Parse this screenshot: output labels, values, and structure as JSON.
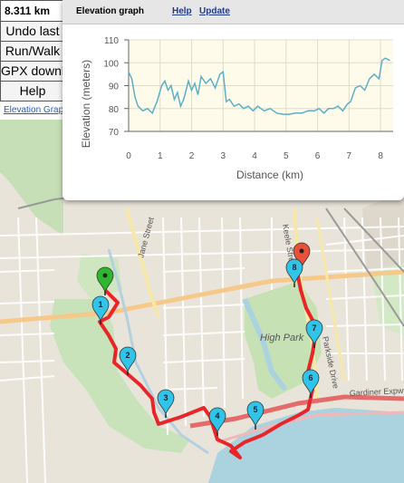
{
  "panel": {
    "distance": "8.311 km",
    "undo_label": "Undo last",
    "runwalk_label": "Run/Walk",
    "gpx_label": "GPX download",
    "help_label": "Help",
    "elevation_link": "Elevation Graph"
  },
  "popup": {
    "title": "Elevation graph",
    "help_link": "Help",
    "update_link": "Update"
  },
  "map": {
    "street_labels": [
      "Jane Street",
      "Keele Street",
      "Parkside Drive"
    ],
    "park_label": "High Park",
    "highway_label": "Gardiner Expwy",
    "route_color": "#e8262a",
    "start_marker_color": "#2fb82f",
    "end_marker_color": "#e8503a",
    "waypoint_color": "#2fc4e8",
    "waypoints": [
      "1",
      "2",
      "3",
      "4",
      "5",
      "6",
      "7",
      "8"
    ]
  },
  "chart_data": {
    "type": "line",
    "title": "",
    "xlabel": "Distance (km)",
    "ylabel": "Elevation (meters)",
    "xlim": [
      0,
      8.4
    ],
    "ylim": [
      70,
      110
    ],
    "xticks": [
      0,
      1,
      2,
      3,
      4,
      5,
      6,
      7,
      8
    ],
    "yticks": [
      70,
      80,
      90,
      100,
      110
    ],
    "grid": true,
    "line_color": "#5bb0c8",
    "background": "#fffbea",
    "x": [
      0,
      0.1,
      0.2,
      0.3,
      0.45,
      0.6,
      0.75,
      0.9,
      1.05,
      1.15,
      1.25,
      1.35,
      1.45,
      1.55,
      1.65,
      1.75,
      1.9,
      2.0,
      2.1,
      2.2,
      2.3,
      2.45,
      2.6,
      2.75,
      2.9,
      3.0,
      3.1,
      3.2,
      3.35,
      3.5,
      3.65,
      3.8,
      3.95,
      4.1,
      4.3,
      4.5,
      4.7,
      4.9,
      5.1,
      5.3,
      5.5,
      5.7,
      5.9,
      6.05,
      6.2,
      6.35,
      6.5,
      6.65,
      6.8,
      6.95,
      7.05,
      7.2,
      7.35,
      7.5,
      7.65,
      7.8,
      7.95,
      8.05,
      8.15,
      8.3
    ],
    "y": [
      96,
      93,
      85,
      81,
      79,
      80,
      78,
      83,
      90,
      92,
      88,
      90,
      84,
      87,
      81,
      84,
      92,
      88,
      91,
      86,
      94,
      91,
      93,
      89,
      95,
      96,
      83,
      84,
      81,
      82,
      80,
      81,
      79,
      81,
      79,
      80,
      78,
      77.5,
      77.5,
      78,
      78,
      79,
      79,
      80,
      78,
      80,
      80,
      81,
      79,
      82,
      83,
      89,
      90,
      88,
      93,
      95,
      93,
      101,
      102,
      101
    ]
  }
}
